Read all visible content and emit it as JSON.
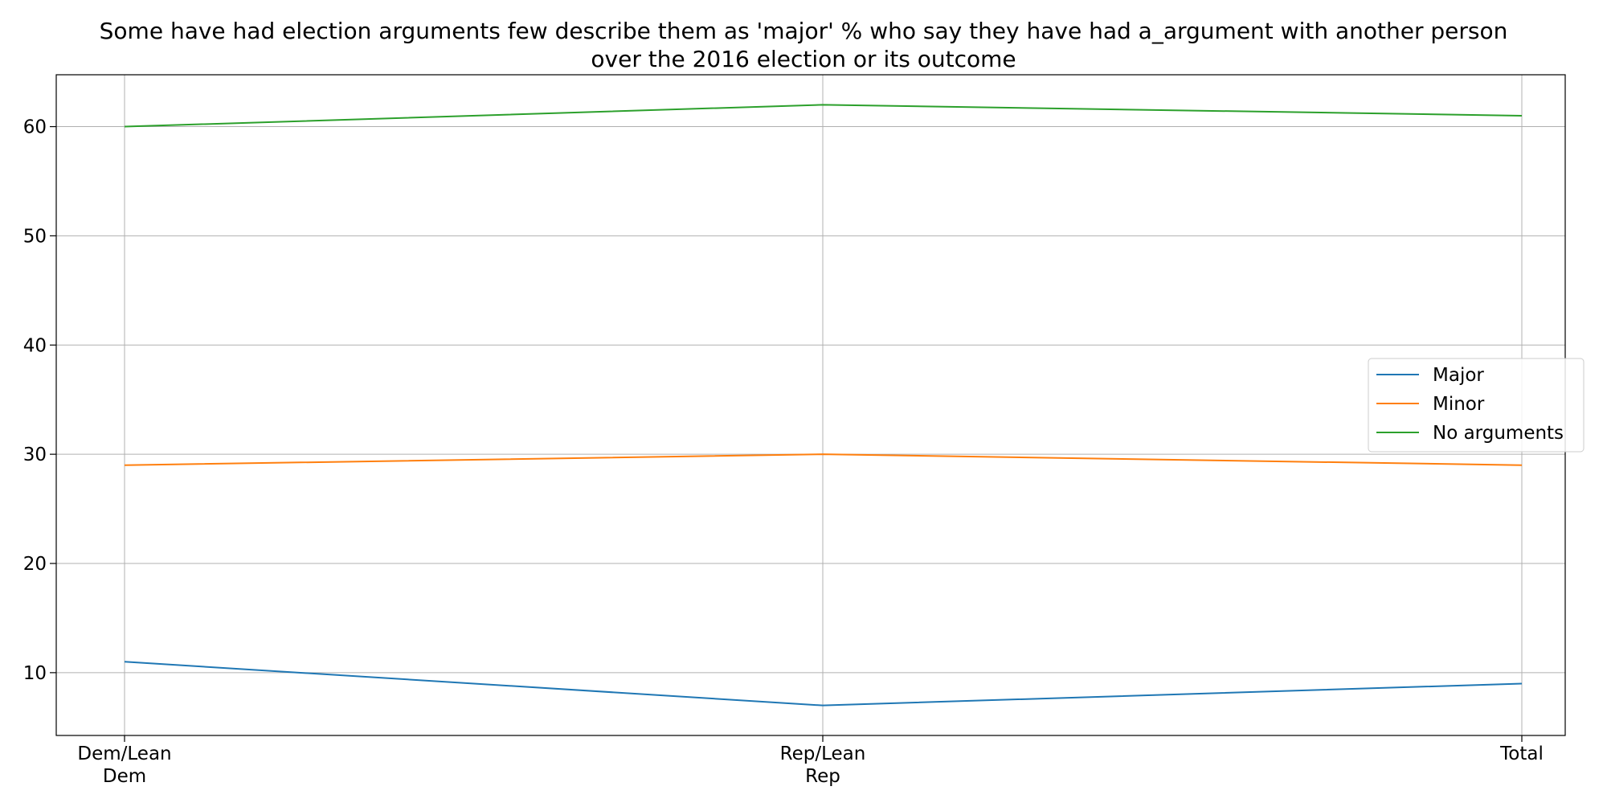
{
  "chart_data": {
    "type": "line",
    "title_lines": [
      "Some have had election arguments few describe them as 'major' % who say they have had a_argument with another person",
      "over the 2016 election or its outcome"
    ],
    "categories": [
      "Dem/Lean Dem",
      "Rep/Lean Rep",
      "Total"
    ],
    "category_label_lines": [
      [
        "Dem/Lean",
        "Dem"
      ],
      [
        "Rep/Lean",
        "Rep"
      ],
      [
        "Total"
      ]
    ],
    "series": [
      {
        "name": "Major",
        "values": [
          11,
          7,
          9
        ],
        "color": "#1f77b4"
      },
      {
        "name": "Minor",
        "values": [
          29,
          30,
          29
        ],
        "color": "#ff7f0e"
      },
      {
        "name": "No arguments",
        "values": [
          60,
          62,
          61
        ],
        "color": "#2ca02c"
      }
    ],
    "ylim": [
      4.25,
      64.75
    ],
    "yticks": [
      10,
      20,
      30,
      40,
      50,
      60
    ],
    "xlabel": "",
    "ylabel": "",
    "grid": true,
    "legend_position": "right"
  }
}
